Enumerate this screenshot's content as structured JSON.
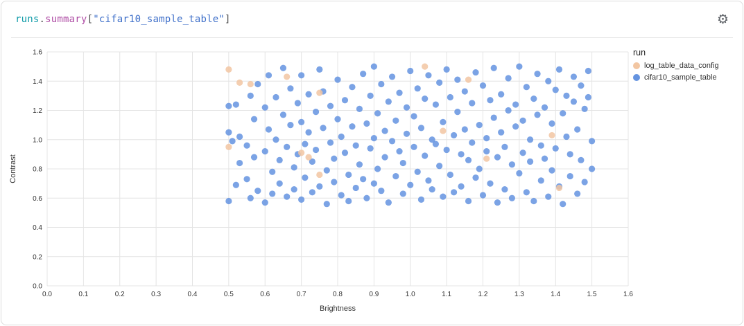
{
  "panel": {
    "title_tokens": [
      {
        "text": "runs",
        "color": "#0f9ba8"
      },
      {
        "text": ".",
        "color": "#4a4a4a"
      },
      {
        "text": "summary",
        "color": "#b04fa6"
      },
      {
        "text": "[",
        "color": "#4a4a4a"
      },
      {
        "text": "\"cifar10_sample_table\"",
        "color": "#3e6fc9"
      },
      {
        "text": "]",
        "color": "#4a4a4a"
      }
    ],
    "gear_icon": "⚙"
  },
  "chart_data": {
    "type": "scatter",
    "title": "runs.summary[\"cifar10_sample_table\"]",
    "xlabel": "Brightness",
    "ylabel": "Contrast",
    "xlim": [
      0,
      1.6
    ],
    "ylim": [
      0,
      1.6
    ],
    "x_tick_labels": [
      "0.0",
      "0.1",
      "0.2",
      "0.3",
      "0.4",
      "0.5",
      "0.6",
      "0.7",
      "0.8",
      "0.9",
      "1.0",
      "1.1",
      "1.2",
      "1.3",
      "1.4",
      "1.5",
      "1.6"
    ],
    "y_tick_labels": [
      "0.0",
      "0.2",
      "0.4",
      "0.6",
      "0.8",
      "1.0",
      "1.2",
      "1.4",
      "1.6"
    ],
    "grid": true,
    "legend_title": "run",
    "legend_position": "right",
    "grid_color": "#e4e4e4",
    "series": [
      {
        "name": "log_table_data_config",
        "color": "#f2c6a2",
        "points": [
          [
            0.5,
            1.48
          ],
          [
            0.53,
            1.39
          ],
          [
            0.56,
            1.38
          ],
          [
            0.66,
            1.43
          ],
          [
            0.75,
            1.32
          ],
          [
            0.7,
            0.91
          ],
          [
            0.72,
            0.88
          ],
          [
            0.75,
            0.76
          ],
          [
            1.04,
            1.5
          ],
          [
            1.09,
            1.06
          ],
          [
            1.16,
            1.41
          ],
          [
            1.21,
            0.87
          ],
          [
            1.39,
            1.03
          ],
          [
            1.41,
            0.67
          ],
          [
            0.5,
            0.95
          ]
        ]
      },
      {
        "name": "cifar10_sample_table",
        "color": "#6493e0",
        "points": [
          [
            0.5,
            1.23
          ],
          [
            0.5,
            1.05
          ],
          [
            0.51,
            0.99
          ],
          [
            0.5,
            0.58
          ],
          [
            0.52,
            0.69
          ],
          [
            0.52,
            1.24
          ],
          [
            0.53,
            1.02
          ],
          [
            0.53,
            0.84
          ],
          [
            0.55,
            0.96
          ],
          [
            0.55,
            0.73
          ],
          [
            0.56,
            1.3
          ],
          [
            0.56,
            0.6
          ],
          [
            0.57,
            1.14
          ],
          [
            0.57,
            0.88
          ],
          [
            0.58,
            1.38
          ],
          [
            0.58,
            0.65
          ],
          [
            0.6,
            1.22
          ],
          [
            0.6,
            0.92
          ],
          [
            0.6,
            0.57
          ],
          [
            0.61,
            1.44
          ],
          [
            0.61,
            1.07
          ],
          [
            0.62,
            0.78
          ],
          [
            0.62,
            0.63
          ],
          [
            0.63,
            1.29
          ],
          [
            0.63,
            1.0
          ],
          [
            0.64,
            0.86
          ],
          [
            0.64,
            0.7
          ],
          [
            0.65,
            1.49
          ],
          [
            0.65,
            1.17
          ],
          [
            0.66,
            0.95
          ],
          [
            0.66,
            0.61
          ],
          [
            0.67,
            1.35
          ],
          [
            0.67,
            1.1
          ],
          [
            0.68,
            0.81
          ],
          [
            0.68,
            0.66
          ],
          [
            0.69,
            1.25
          ],
          [
            0.69,
            0.9
          ],
          [
            0.7,
            1.44
          ],
          [
            0.7,
            1.12
          ],
          [
            0.7,
            0.59
          ],
          [
            0.71,
            0.97
          ],
          [
            0.71,
            0.74
          ],
          [
            0.72,
            1.31
          ],
          [
            0.72,
            1.05
          ],
          [
            0.73,
            0.85
          ],
          [
            0.73,
            0.64
          ],
          [
            0.74,
            1.19
          ],
          [
            0.74,
            0.93
          ],
          [
            0.75,
            1.48
          ],
          [
            0.75,
            0.68
          ],
          [
            0.76,
            1.33
          ],
          [
            0.76,
            1.08
          ],
          [
            0.77,
            0.79
          ],
          [
            0.77,
            0.56
          ],
          [
            0.78,
            1.23
          ],
          [
            0.78,
            0.98
          ],
          [
            0.79,
            0.87
          ],
          [
            0.79,
            0.71
          ],
          [
            0.8,
            1.41
          ],
          [
            0.8,
            1.14
          ],
          [
            0.81,
            1.02
          ],
          [
            0.81,
            0.62
          ],
          [
            0.82,
            1.27
          ],
          [
            0.82,
            0.91
          ],
          [
            0.83,
            0.76
          ],
          [
            0.83,
            0.58
          ],
          [
            0.84,
            1.36
          ],
          [
            0.84,
            1.09
          ],
          [
            0.85,
            0.96
          ],
          [
            0.85,
            0.67
          ],
          [
            0.86,
            1.21
          ],
          [
            0.86,
            0.83
          ],
          [
            0.87,
            1.45
          ],
          [
            0.87,
            0.73
          ],
          [
            0.88,
            1.11
          ],
          [
            0.88,
            0.6
          ],
          [
            0.89,
            1.3
          ],
          [
            0.89,
            0.94
          ],
          [
            0.9,
            1.5
          ],
          [
            0.9,
            1.01
          ],
          [
            0.9,
            0.7
          ],
          [
            0.91,
            1.18
          ],
          [
            0.91,
            0.8
          ],
          [
            0.92,
            1.38
          ],
          [
            0.92,
            0.65
          ],
          [
            0.93,
            1.06
          ],
          [
            0.93,
            0.88
          ],
          [
            0.94,
            1.26
          ],
          [
            0.94,
            0.57
          ],
          [
            0.95,
            1.43
          ],
          [
            0.95,
            0.99
          ],
          [
            0.96,
            1.13
          ],
          [
            0.96,
            0.75
          ],
          [
            0.97,
            1.32
          ],
          [
            0.97,
            0.92
          ],
          [
            0.98,
            0.84
          ],
          [
            0.98,
            0.63
          ],
          [
            0.99,
            1.22
          ],
          [
            0.99,
            1.04
          ],
          [
            1.0,
            1.47
          ],
          [
            1.0,
            0.69
          ],
          [
            1.01,
            1.16
          ],
          [
            1.01,
            0.95
          ],
          [
            1.02,
            1.35
          ],
          [
            1.02,
            0.78
          ],
          [
            1.03,
            1.08
          ],
          [
            1.03,
            0.59
          ],
          [
            1.04,
            1.28
          ],
          [
            1.04,
            0.89
          ],
          [
            1.05,
            1.44
          ],
          [
            1.05,
            0.72
          ],
          [
            1.06,
            1.0
          ],
          [
            1.06,
            0.66
          ],
          [
            1.07,
            1.24
          ],
          [
            1.07,
            0.97
          ],
          [
            1.08,
            1.39
          ],
          [
            1.08,
            0.82
          ],
          [
            1.09,
            1.12
          ],
          [
            1.09,
            0.61
          ],
          [
            1.1,
            1.48
          ],
          [
            1.1,
            0.93
          ],
          [
            1.11,
            1.29
          ],
          [
            1.11,
            0.76
          ],
          [
            1.12,
            1.03
          ],
          [
            1.12,
            0.64
          ],
          [
            1.13,
            1.41
          ],
          [
            1.13,
            1.19
          ],
          [
            1.14,
            0.9
          ],
          [
            1.14,
            0.68
          ],
          [
            1.15,
            1.33
          ],
          [
            1.15,
            1.07
          ],
          [
            1.16,
            0.86
          ],
          [
            1.16,
            0.58
          ],
          [
            1.17,
            1.25
          ],
          [
            1.17,
            0.98
          ],
          [
            1.18,
            1.46
          ],
          [
            1.18,
            0.74
          ],
          [
            1.19,
            1.1
          ],
          [
            1.19,
            0.8
          ],
          [
            1.2,
            1.37
          ],
          [
            1.2,
            0.62
          ],
          [
            1.21,
            1.01
          ],
          [
            1.21,
            0.92
          ],
          [
            1.22,
            1.27
          ],
          [
            1.22,
            0.7
          ],
          [
            1.23,
            1.49
          ],
          [
            1.23,
            1.15
          ],
          [
            1.24,
            0.88
          ],
          [
            1.24,
            0.57
          ],
          [
            1.25,
            1.31
          ],
          [
            1.25,
            1.05
          ],
          [
            1.26,
            0.95
          ],
          [
            1.26,
            0.66
          ],
          [
            1.27,
            1.42
          ],
          [
            1.27,
            1.2
          ],
          [
            1.28,
            0.83
          ],
          [
            1.28,
            0.6
          ],
          [
            1.29,
            1.24
          ],
          [
            1.29,
            1.09
          ],
          [
            1.3,
            1.5
          ],
          [
            1.3,
            0.77
          ],
          [
            1.31,
            1.13
          ],
          [
            1.31,
            0.91
          ],
          [
            1.32,
            1.36
          ],
          [
            1.32,
            0.64
          ],
          [
            1.33,
            1.0
          ],
          [
            1.33,
            0.85
          ],
          [
            1.34,
            1.28
          ],
          [
            1.34,
            0.58
          ],
          [
            1.35,
            1.45
          ],
          [
            1.35,
            1.17
          ],
          [
            1.36,
            0.96
          ],
          [
            1.36,
            0.72
          ],
          [
            1.37,
            1.22
          ],
          [
            1.37,
            0.87
          ],
          [
            1.38,
            1.4
          ],
          [
            1.38,
            0.61
          ],
          [
            1.39,
            1.11
          ],
          [
            1.39,
            0.79
          ],
          [
            1.4,
            1.34
          ],
          [
            1.4,
            0.94
          ],
          [
            1.41,
            1.48
          ],
          [
            1.41,
            0.68
          ],
          [
            1.42,
            1.18
          ],
          [
            1.42,
            0.56
          ],
          [
            1.43,
            1.3
          ],
          [
            1.43,
            1.02
          ],
          [
            1.44,
            0.9
          ],
          [
            1.44,
            0.75
          ],
          [
            1.45,
            1.43
          ],
          [
            1.45,
            1.26
          ],
          [
            1.46,
            1.07
          ],
          [
            1.46,
            0.63
          ],
          [
            1.47,
            1.37
          ],
          [
            1.47,
            0.86
          ],
          [
            1.48,
            1.21
          ],
          [
            1.48,
            0.71
          ],
          [
            1.49,
            1.47
          ],
          [
            1.49,
            1.29
          ],
          [
            1.5,
            0.99
          ],
          [
            1.5,
            0.8
          ]
        ]
      }
    ]
  }
}
